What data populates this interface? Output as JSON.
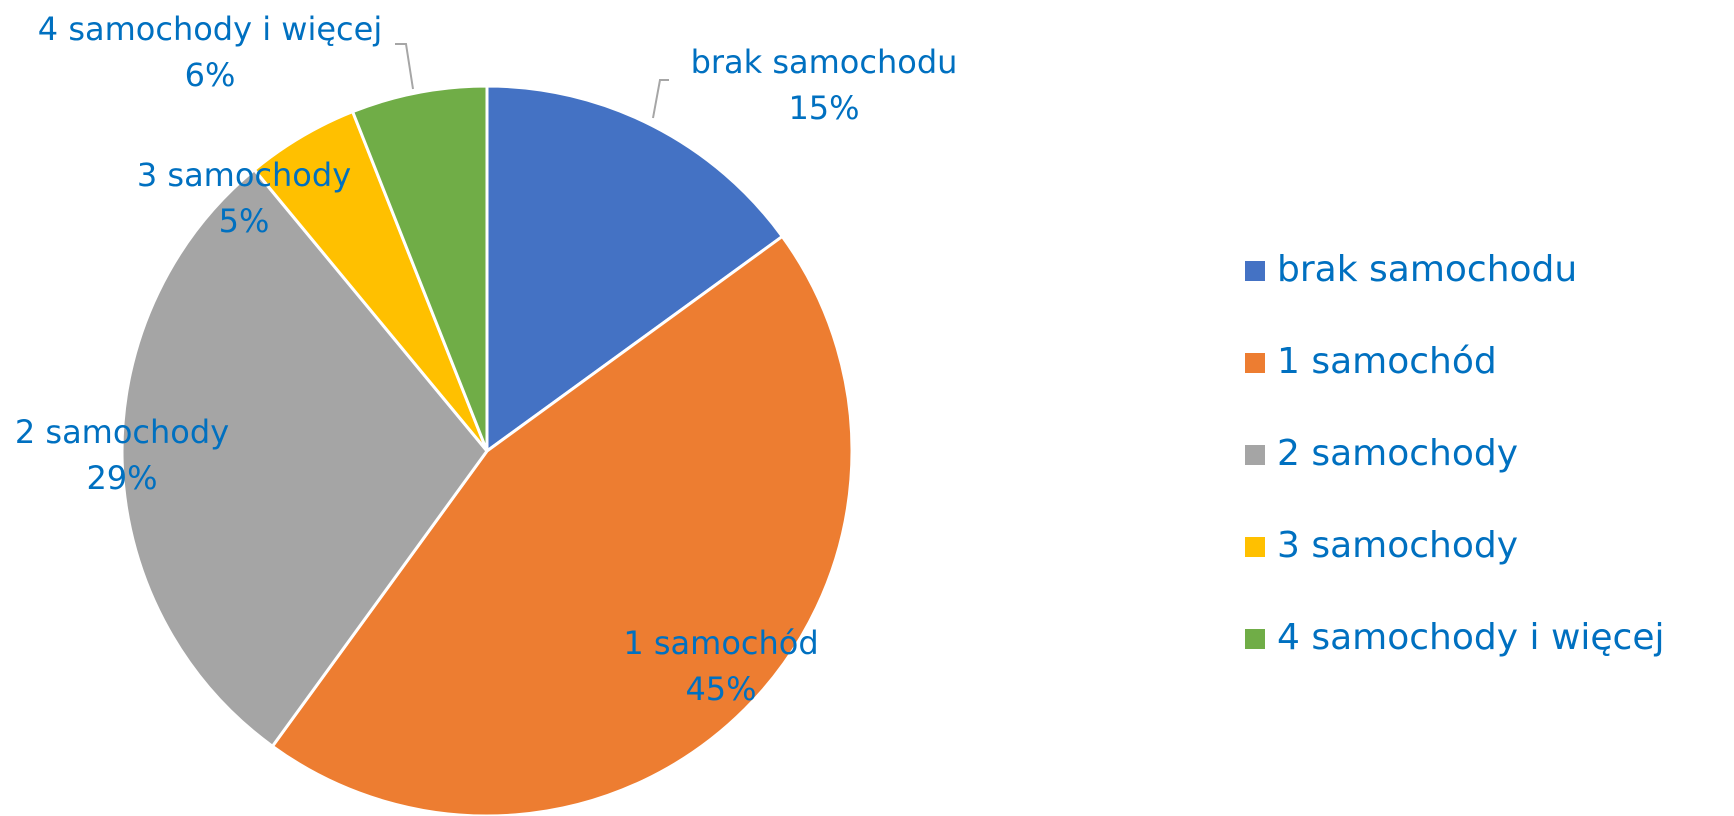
{
  "chart_data": {
    "type": "pie",
    "categories": [
      "brak samochodu",
      "1 samochód",
      "2 samochody",
      "3 samochody",
      "4 samochody i więcej"
    ],
    "values": [
      15,
      45,
      29,
      5,
      6
    ],
    "value_labels": [
      "15%",
      "45%",
      "29%",
      "5%",
      "6%"
    ],
    "colors": [
      "#4472c4",
      "#ed7d31",
      "#a5a5a5",
      "#ffc000",
      "#70ad47"
    ],
    "legend": "right"
  }
}
